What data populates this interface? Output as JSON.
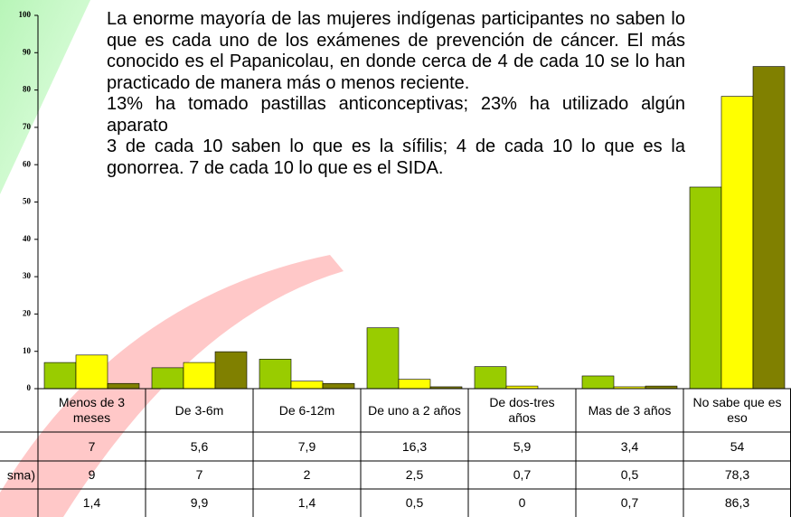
{
  "chart_data": {
    "type": "bar",
    "annotations": [
      "La enorme mayoría de las mujeres indígenas participantes no saben lo que es cada uno de los exámenes de prevención de cáncer. El más conocido es el Papanicolau, en donde cerca de 4 de cada 10 se lo han practicado de manera más o menos reciente.",
      "13% ha tomado pastillas anticonceptivas; 23% ha utilizado algún aparato",
      "3 de cada 10 saben lo que es la sífilis; 4 de cada 10 lo que es la gonorrea. 7 de cada 10 lo que es el SIDA."
    ],
    "categories": [
      "Menos de 3 meses",
      "De 3-6m",
      "De 6-12m",
      "De uno a 2 años",
      "De dos-tres años",
      "Mas de 3 años",
      "No sabe que es eso"
    ],
    "series": [
      {
        "color": "#99cc00",
        "values": [
          7,
          5.6,
          7.9,
          16.3,
          5.9,
          3.4,
          54
        ],
        "value_labels": [
          "7",
          "5,6",
          "7,9",
          "16,3",
          "5,9",
          "3,4",
          "54"
        ]
      },
      {
        "name": "sma)",
        "color": "#ffff00",
        "values": [
          9,
          7,
          2,
          2.5,
          0.7,
          0.5,
          78.3
        ],
        "value_labels": [
          "9",
          "7",
          "2",
          "2,5",
          "0,7",
          "0,5",
          "78,3"
        ]
      },
      {
        "color": "#808000",
        "values": [
          1.4,
          9.9,
          1.4,
          0.5,
          0,
          0.7,
          86.3
        ],
        "value_labels": [
          "1,4",
          "9,9",
          "1,4",
          "0,5",
          "0",
          "0,7",
          "86,3"
        ]
      }
    ],
    "ylim": [
      0,
      100
    ],
    "yticks": [
      0,
      10,
      20,
      30,
      40,
      50,
      60,
      70,
      80,
      90,
      100
    ]
  }
}
